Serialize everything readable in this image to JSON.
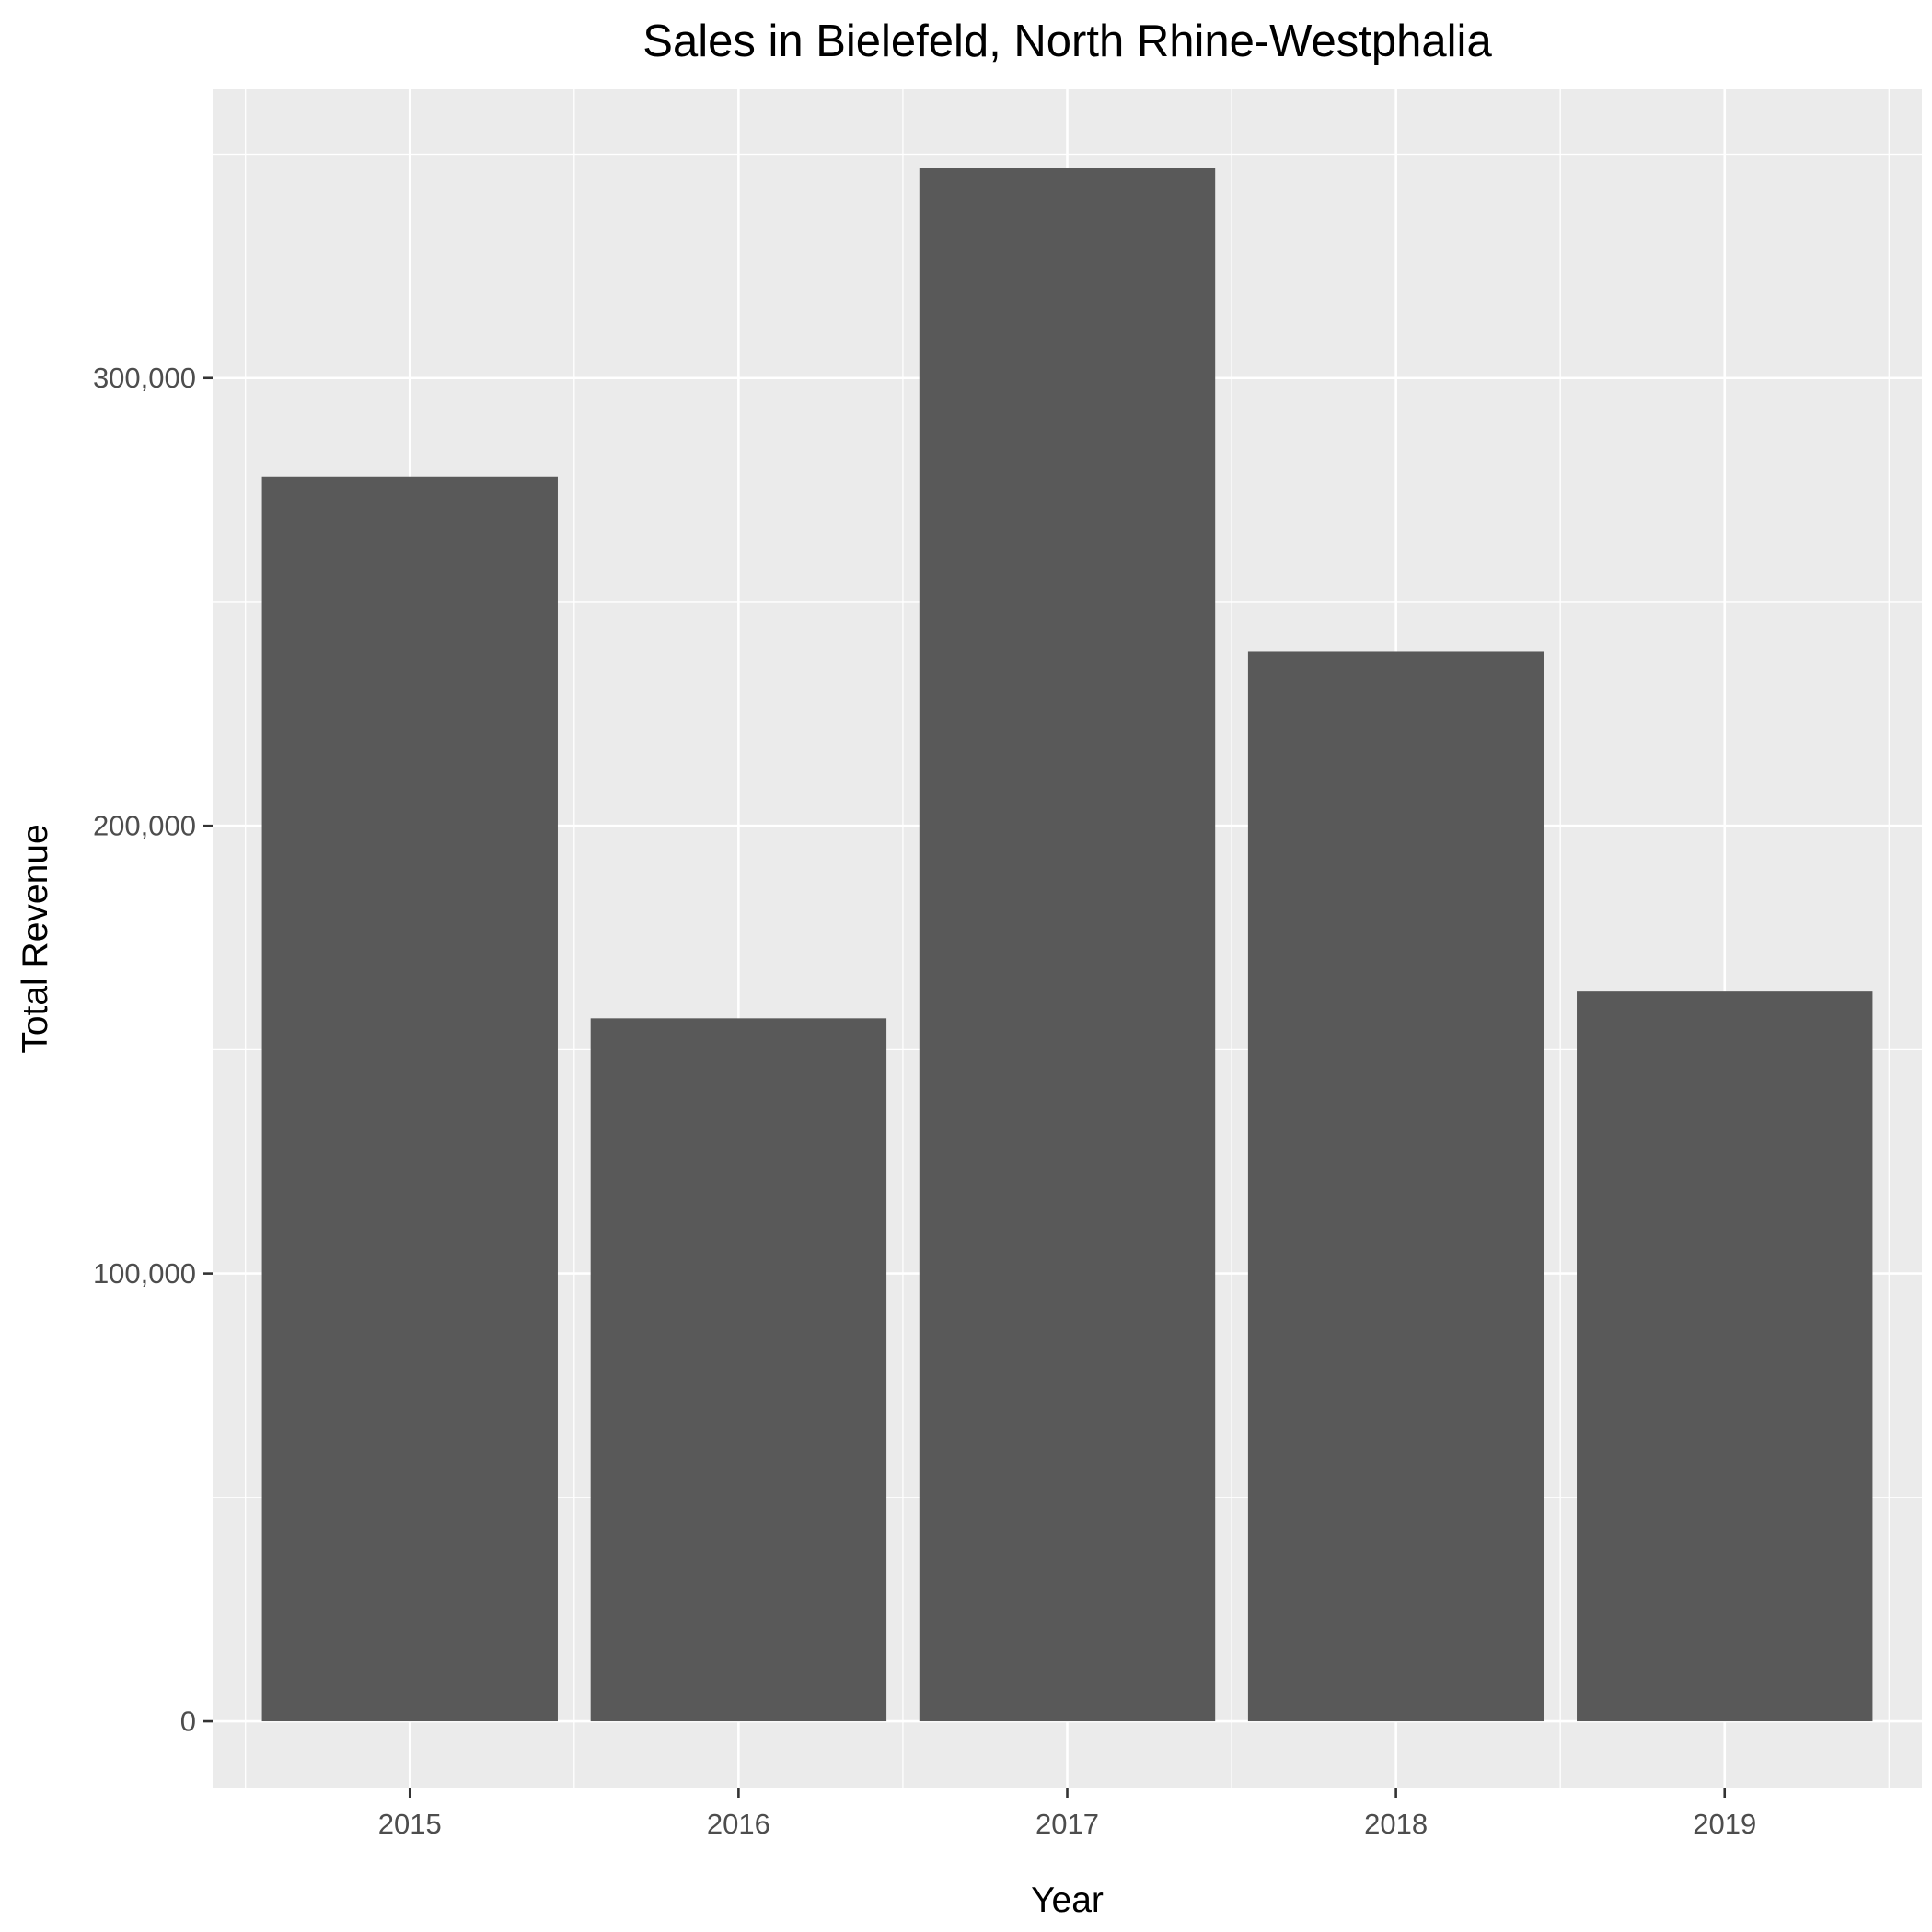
{
  "chart_data": {
    "type": "bar",
    "title": "Sales in Bielefeld, North Rhine-Westphalia",
    "xlabel": "Year",
    "ylabel": "Total Revenue",
    "categories": [
      "2015",
      "2016",
      "2017",
      "2018",
      "2019"
    ],
    "values": [
      278000,
      157000,
      347000,
      239000,
      163000
    ],
    "ylim": [
      -15000,
      364500
    ],
    "y_ticks": [
      0,
      100000,
      200000,
      300000
    ],
    "y_tick_labels": [
      "0",
      "100,000",
      "200,000",
      "300,000"
    ],
    "grid": true,
    "legend": "none",
    "colors": {
      "bar": "#595959",
      "panel": "#ebebeb",
      "grid": "#ffffff",
      "tick_text": "#4d4d4d",
      "tick_mark": "#333333",
      "text": "#000000",
      "background": "#ffffff"
    }
  }
}
